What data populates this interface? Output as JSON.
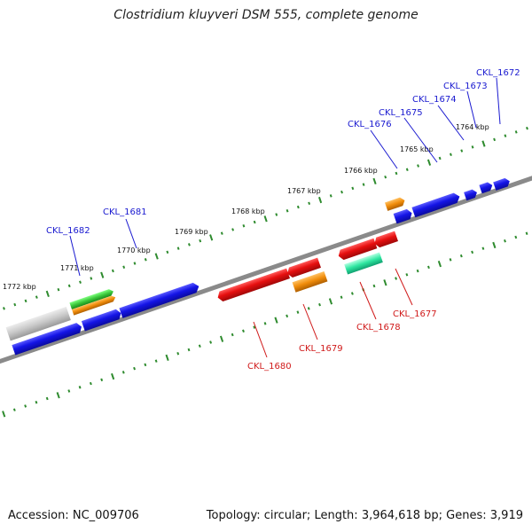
{
  "title": "Clostridium kluyveri DSM 555, complete genome",
  "footer": {
    "accession_label": "Accession:",
    "accession": "NC_009706",
    "topology_label": "Topology:",
    "topology": "circular",
    "length_label": "Length:",
    "length": "3,964,618 bp",
    "genes_label": "Genes:",
    "genes": "3,919"
  },
  "colors": {
    "backbone": "#8a8a8a",
    "tick": "#2e8b2e",
    "forward_gene": "#1414e6",
    "reverse_gene": "#e60f0f",
    "orange_gene": "#f08c0a",
    "green_gene": "#3cc83c",
    "teal_gene": "#2ee6a0",
    "grey_gene": "#c8c8c8",
    "top_label": "#1a1ad0",
    "bottom_label": "#d01a1a"
  },
  "chart_data": {
    "type": "genome-map",
    "scale_unit": "kbp",
    "ticks": [
      "1764 kbp",
      "1765 kbp",
      "1766 kbp",
      "1767 kbp",
      "1768 kbp",
      "1769 kbp",
      "1770 kbp",
      "1771 kbp",
      "1772 kbp"
    ],
    "top_labels": [
      "CKL_1672",
      "CKL_1673",
      "CKL_1674",
      "CKL_1675",
      "CKL_1676",
      "CKL_1681",
      "CKL_1682"
    ],
    "bottom_labels": [
      "CKL_1677",
      "CKL_1678",
      "CKL_1679",
      "CKL_1680"
    ]
  }
}
